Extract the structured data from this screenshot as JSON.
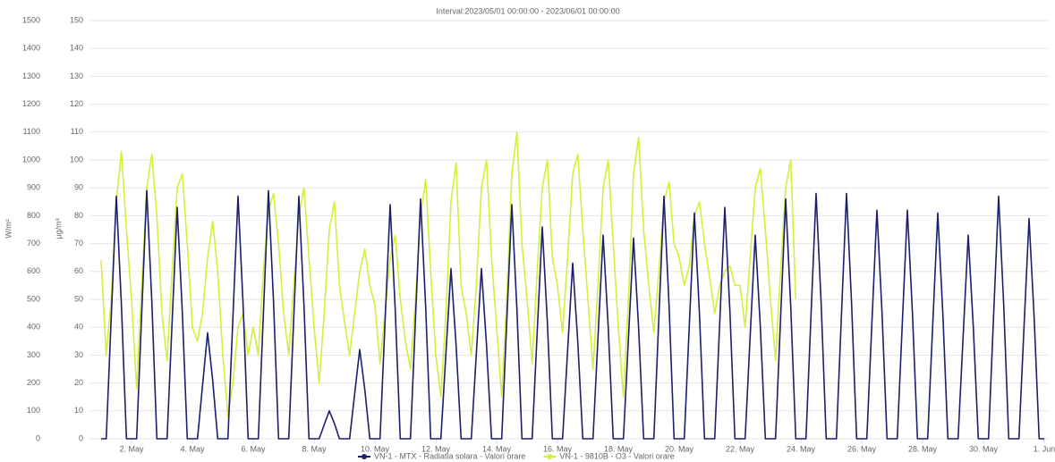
{
  "chart_data": {
    "type": "line",
    "title": "Interval:2023/05/01 00:00:00 - 2023/06/01 00:00:00",
    "y_label": "W/m²",
    "y2_label": "µg/m³",
    "x": [
      0,
      4,
      8,
      12,
      16,
      20,
      24,
      28,
      32,
      36,
      40,
      44,
      48,
      52,
      56,
      60,
      64,
      68,
      72,
      76,
      80,
      84,
      88,
      92,
      96,
      100,
      104,
      108,
      112,
      116,
      120,
      124,
      128,
      132,
      136,
      140,
      144,
      148,
      152,
      156,
      160,
      164,
      168,
      172,
      176,
      180,
      184,
      188,
      192,
      196,
      200,
      204,
      208,
      212,
      216,
      220,
      224,
      228,
      232,
      236,
      240,
      244,
      248,
      252,
      256,
      260,
      264,
      268,
      272,
      276,
      280,
      284,
      288,
      292,
      296,
      300,
      304,
      308,
      312,
      316,
      320,
      324,
      328,
      332,
      336,
      340,
      344,
      348,
      352,
      356,
      360,
      364,
      368,
      372,
      376,
      380,
      384,
      388,
      392,
      396,
      400,
      404,
      408,
      412,
      416,
      420,
      424,
      428,
      432,
      436,
      440,
      444,
      448,
      452,
      456,
      460,
      464,
      468,
      472,
      476,
      480,
      484,
      488,
      492,
      496,
      500,
      504,
      508,
      512,
      516,
      520,
      524,
      528,
      532,
      536,
      540,
      544,
      548,
      552,
      556,
      560,
      564,
      568,
      572,
      576,
      580,
      584,
      588,
      592,
      596,
      600,
      604,
      608,
      612,
      616,
      620,
      624,
      628,
      632,
      636,
      640,
      644,
      648,
      652,
      656,
      660,
      664,
      668,
      672,
      676,
      680,
      684,
      688,
      692,
      696,
      700,
      704,
      708,
      712,
      716,
      720,
      724,
      728,
      732,
      736,
      740,
      744
    ],
    "series": [
      {
        "name": "VN-1 - MTX - Radiatia solara - Valori orare",
        "color": "#1b1f6e",
        "values": [
          0,
          0,
          435,
          870,
          479,
          0,
          0,
          0,
          445,
          890,
          490,
          0,
          0,
          0,
          415,
          830,
          457,
          0,
          0,
          0,
          190,
          380,
          209,
          0,
          0,
          0,
          435,
          870,
          479,
          0,
          0,
          0,
          445,
          890,
          490,
          0,
          0,
          0,
          435,
          870,
          479,
          0,
          0,
          0,
          50,
          100,
          55,
          0,
          0,
          0,
          160,
          320,
          176,
          0,
          0,
          0,
          420,
          840,
          462,
          0,
          0,
          0,
          430,
          860,
          473,
          0,
          0,
          0,
          305,
          610,
          336,
          0,
          0,
          0,
          305,
          610,
          336,
          0,
          0,
          0,
          420,
          840,
          462,
          0,
          0,
          0,
          380,
          760,
          418,
          0,
          0,
          0,
          315,
          630,
          347,
          0,
          0,
          0,
          365,
          730,
          402,
          0,
          0,
          0,
          360,
          720,
          396,
          0,
          0,
          0,
          435,
          870,
          479,
          0,
          0,
          0,
          405,
          810,
          446,
          0,
          0,
          0,
          415,
          830,
          457,
          0,
          0,
          0,
          365,
          730,
          402,
          0,
          0,
          0,
          430,
          860,
          473,
          0,
          0,
          0,
          440,
          880,
          484,
          0,
          0,
          0,
          440,
          880,
          484,
          0,
          0,
          0,
          410,
          820,
          451,
          0,
          0,
          0,
          410,
          820,
          451,
          0,
          0,
          0,
          405,
          810,
          446,
          0,
          0,
          0,
          365,
          730,
          402,
          0,
          0,
          0,
          435,
          870,
          479,
          0,
          0,
          0,
          395,
          790,
          435,
          0,
          0
        ]
      },
      {
        "name": "VN-1 - 9810B - O3 - Valori orare",
        "color": "#d4ef3a",
        "axis": "y2",
        "values": [
          64,
          30,
          50,
          85,
          103,
          75,
          50,
          18,
          55,
          90,
          102,
          80,
          45,
          28,
          60,
          90,
          95,
          70,
          40,
          35,
          45,
          65,
          78,
          60,
          30,
          8,
          20,
          40,
          45,
          30,
          40,
          30,
          60,
          82,
          88,
          70,
          45,
          30,
          55,
          80,
          90,
          65,
          40,
          20,
          45,
          75,
          85,
          55,
          42,
          30,
          45,
          60,
          68,
          55,
          48,
          27,
          45,
          65,
          73,
          50,
          35,
          25,
          50,
          80,
          93,
          60,
          30,
          15,
          45,
          85,
          99,
          55,
          45,
          30,
          55,
          90,
          100,
          65,
          40,
          15,
          50,
          95,
          110,
          70,
          50,
          27,
          60,
          90,
          100,
          65,
          55,
          38,
          65,
          95,
          102,
          75,
          50,
          25,
          55,
          90,
          100,
          70,
          40,
          15,
          50,
          95,
          108,
          75,
          55,
          38,
          60,
          85,
          92,
          70,
          65,
          55,
          62,
          80,
          85,
          70,
          58,
          45,
          55,
          60,
          62,
          55,
          55,
          40,
          65,
          90,
          97,
          75,
          50,
          28,
          60,
          90,
          100,
          50,
          null,
          null,
          null,
          null,
          null,
          null,
          null,
          null,
          null,
          null,
          null,
          null,
          null,
          null,
          null,
          null,
          null,
          null,
          null,
          null,
          null,
          null,
          null,
          null,
          null,
          null,
          null,
          null,
          null,
          null,
          null,
          null,
          null,
          null,
          null,
          null,
          null,
          null,
          null,
          null,
          null,
          null,
          null,
          null,
          null,
          null,
          null,
          null,
          null
        ]
      }
    ],
    "xlim": [
      0,
      744
    ],
    "xticks": [
      {
        "value": 24,
        "label": "2. May"
      },
      {
        "value": 72,
        "label": "4. May"
      },
      {
        "value": 120,
        "label": "6. May"
      },
      {
        "value": 168,
        "label": "8. May"
      },
      {
        "value": 216,
        "label": "10. May"
      },
      {
        "value": 264,
        "label": "12. May"
      },
      {
        "value": 312,
        "label": "14. May"
      },
      {
        "value": 360,
        "label": "16. May"
      },
      {
        "value": 408,
        "label": "18. May"
      },
      {
        "value": 456,
        "label": "20. May"
      },
      {
        "value": 504,
        "label": "22. May"
      },
      {
        "value": 552,
        "label": "24. May"
      },
      {
        "value": 600,
        "label": "26. May"
      },
      {
        "value": 648,
        "label": "28. May"
      },
      {
        "value": 696,
        "label": "30. May"
      },
      {
        "value": 744,
        "label": "1. Jun"
      }
    ],
    "ylim": [
      0,
      1500
    ],
    "yticks": [
      0,
      100,
      200,
      300,
      400,
      500,
      600,
      700,
      800,
      900,
      1000,
      1100,
      1200,
      1300,
      1400,
      1500
    ],
    "y2lim": [
      0,
      150
    ],
    "y2ticks": [
      0,
      10,
      20,
      30,
      40,
      50,
      60,
      70,
      80,
      90,
      100,
      110,
      120,
      130,
      140,
      150
    ],
    "grid": true
  }
}
